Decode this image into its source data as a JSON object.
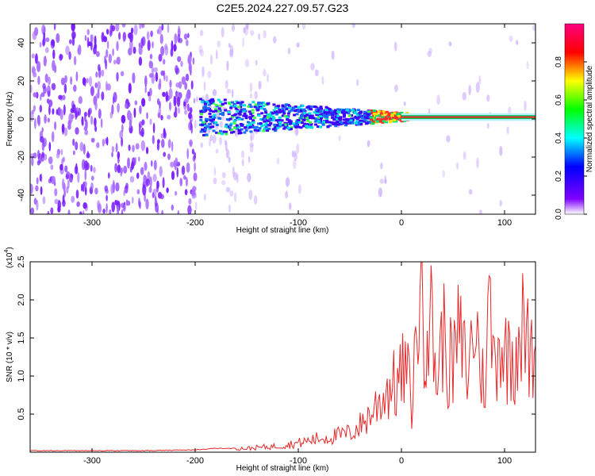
{
  "title": "C2E5.2024.227.09.57.G23",
  "chart_data": [
    {
      "type": "heatmap",
      "xlabel": "Height of straight line (km)",
      "ylabel": "Frequency (Hz)",
      "xlim": [
        -360,
        130
      ],
      "ylim": [
        -50,
        50
      ],
      "x_ticks": [
        -300,
        -200,
        -100,
        0,
        100
      ],
      "y_ticks": [
        -40,
        -20,
        0,
        20,
        40
      ],
      "colorbar": {
        "label": "Normalized spectral amplitude",
        "range": [
          0,
          1
        ],
        "ticks": [
          0.0,
          0.2,
          0.4,
          0.6,
          0.8
        ],
        "tick_labels": [
          "0.0",
          "0.2",
          "0.4",
          "0.6",
          "0.8"
        ],
        "colors": [
          "#ffffff",
          "#7f00ff",
          "#0000ff",
          "#00ffff",
          "#00ff00",
          "#ffff00",
          "#ff0000",
          "#ff0080"
        ]
      },
      "signal_band": {
        "x_start": -195,
        "x_end": 130,
        "start_half_width_hz": 10,
        "end_half_width_hz": 2,
        "center_hz": 1
      }
    },
    {
      "type": "line",
      "xlabel": "Height of straight line (km)",
      "ylabel": "SNR (10 * v/v)",
      "multiplier_label": "(x10",
      "multiplier_exp": "4",
      "xlim": [
        -360,
        130
      ],
      "ylim": [
        0,
        2.5
      ],
      "x_ticks": [
        -300,
        -200,
        -100,
        0,
        100
      ],
      "y_ticks": [
        0.5,
        1.0,
        1.5,
        2.0,
        2.5
      ],
      "y_tick_labels": [
        "0.5",
        "1.0",
        "1.5",
        "2.0",
        "2.5"
      ],
      "series": [
        {
          "color": "#e8282a",
          "x": [
            -360,
            -300,
            -250,
            -200,
            -180,
            -150,
            -120,
            -100,
            -80,
            -60,
            -50,
            -40,
            -30,
            -25,
            -20,
            -15,
            -10,
            -5,
            0,
            5,
            10,
            15,
            18,
            20,
            22,
            25,
            30,
            35,
            40,
            45,
            50,
            55,
            60,
            65,
            70,
            75,
            80,
            85,
            90,
            95,
            100,
            105,
            110,
            115,
            120,
            125,
            130
          ],
          "values": [
            0.02,
            0.02,
            0.02,
            0.03,
            0.05,
            0.05,
            0.08,
            0.12,
            0.18,
            0.22,
            0.25,
            0.35,
            0.5,
            0.6,
            0.7,
            0.8,
            0.9,
            0.85,
            1.0,
            1.1,
            0.6,
            1.6,
            2.3,
            2.5,
            1.7,
            1.9,
            1.6,
            0.9,
            1.6,
            1.2,
            1.1,
            1.5,
            1.3,
            1.0,
            1.7,
            1.4,
            0.8,
            1.9,
            1.2,
            1.6,
            1.2,
            1.4,
            1.3,
            1.7,
            1.5,
            1.2,
            1.4
          ]
        }
      ]
    }
  ]
}
